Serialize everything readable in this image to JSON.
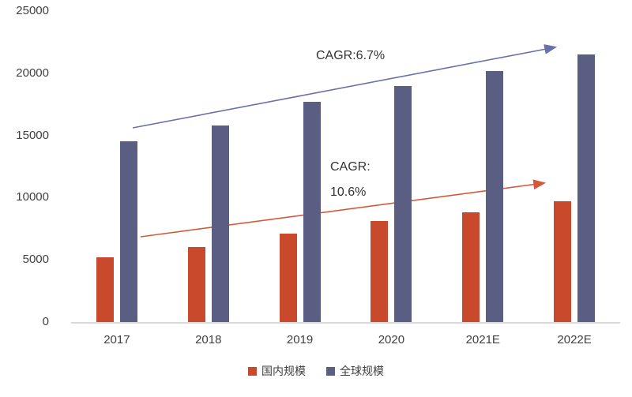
{
  "chart_data": {
    "type": "bar",
    "categories": [
      "2017",
      "2018",
      "2019",
      "2020",
      "2021E",
      "2022E"
    ],
    "series": [
      {
        "name": "国内规模",
        "color": "#c9492c",
        "values": [
          5200,
          6000,
          7100,
          8100,
          8800,
          9700
        ]
      },
      {
        "name": "全球规模",
        "color": "#5a5e82",
        "values": [
          14500,
          15800,
          17700,
          19000,
          20200,
          21500
        ]
      }
    ],
    "title": "",
    "xlabel": "",
    "ylabel": "",
    "ylim": [
      0,
      25000
    ],
    "yticks": [
      0,
      5000,
      10000,
      15000,
      20000,
      25000
    ],
    "grid": false,
    "legend_position": "bottom",
    "annotations": [
      {
        "text": "CAGR:6.7%",
        "color": "#333333"
      },
      {
        "text": "CAGR:",
        "color": "#333333"
      },
      {
        "text": "10.6%",
        "color": "#333333"
      }
    ],
    "trend_arrows": [
      {
        "series": "全球规模",
        "color": "#6a70a8"
      },
      {
        "series": "国内规模",
        "color": "#d4593c"
      }
    ]
  }
}
